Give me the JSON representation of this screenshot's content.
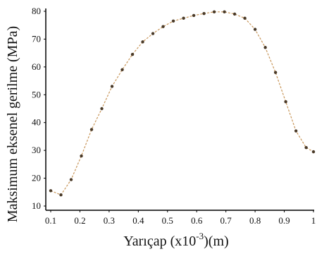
{
  "chart_data": {
    "type": "line",
    "title": "",
    "xlabel": "Yarıçap  (x10",
    "xlabel_superscript": "-3",
    "xlabel_suffix": ")(m)",
    "ylabel": "Maksimum eksenel gerilme (MPa)",
    "xlim": [
      0.1,
      1.0
    ],
    "ylim": [
      10,
      80
    ],
    "x_ticks": [
      0.1,
      0.2,
      0.3,
      0.4,
      0.5,
      0.6,
      0.7,
      0.8,
      0.9,
      1
    ],
    "x_tick_labels": [
      "0.1",
      "0.2",
      "0.3",
      "0.4",
      "0.5",
      "0.6",
      "0.7",
      "0.8",
      "0.9",
      "1"
    ],
    "y_ticks": [
      10,
      20,
      30,
      40,
      50,
      60,
      70,
      80
    ],
    "y_tick_labels": [
      "10",
      "20",
      "30",
      "40",
      "50",
      "60",
      "70",
      "80"
    ],
    "grid": false,
    "series_color": "#c8965a",
    "point_color": "#4a3a28",
    "series": [
      {
        "x": [
          0.1,
          0.135,
          0.17,
          0.205,
          0.24,
          0.275,
          0.31,
          0.345,
          0.38,
          0.415,
          0.45,
          0.485,
          0.52,
          0.555,
          0.59,
          0.625,
          0.66,
          0.695,
          0.73,
          0.765,
          0.8,
          0.835,
          0.87,
          0.905,
          0.94,
          0.975,
          1.0
        ],
        "y": [
          15.5,
          14.0,
          19.5,
          28.0,
          37.5,
          45.0,
          53.0,
          59.0,
          64.5,
          69.0,
          72.0,
          74.5,
          76.5,
          77.5,
          78.5,
          79.2,
          79.8,
          79.8,
          79.0,
          77.5,
          73.5,
          67.0,
          58.0,
          47.5,
          37.0,
          31.0,
          29.5
        ]
      }
    ]
  }
}
